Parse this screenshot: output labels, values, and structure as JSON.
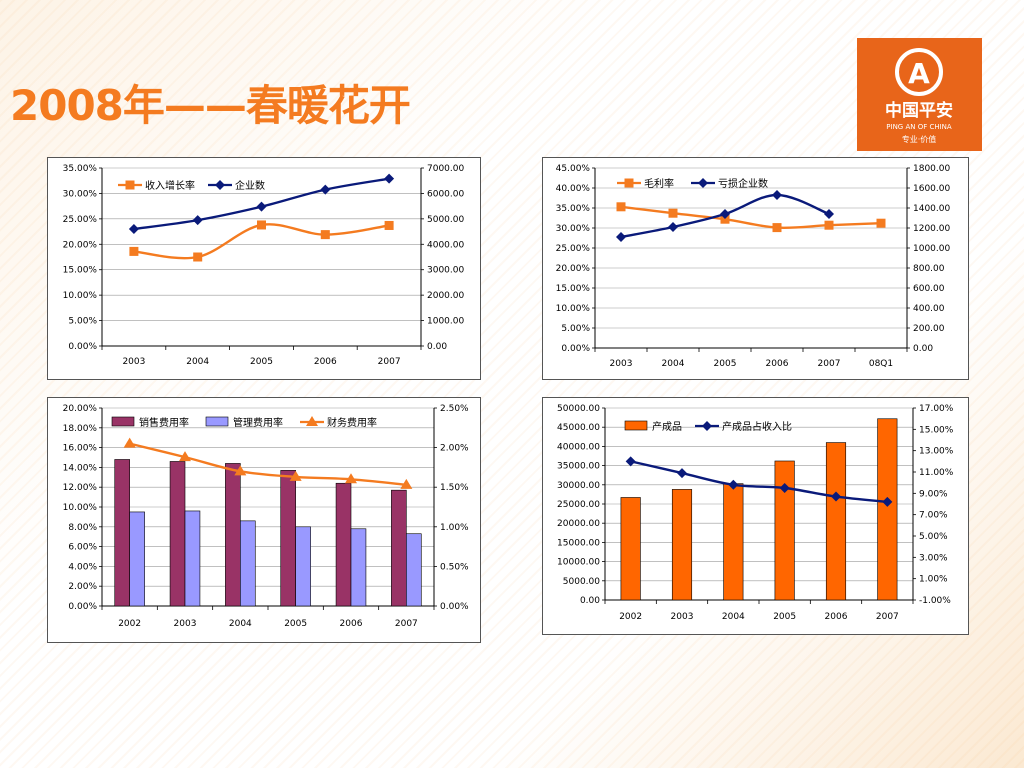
{
  "slide": {
    "title": "2008年——春暖花开"
  },
  "logo": {
    "name_cn": "中国平安",
    "name_en": "PING AN OF CHINA",
    "slogan": "专业·价值",
    "color": "#e8651a"
  },
  "chart_data": [
    {
      "type": "line",
      "categories": [
        "2003",
        "2004",
        "2005",
        "2006",
        "2007"
      ],
      "y_left": {
        "ticks": [
          "0.00%",
          "5.00%",
          "10.00%",
          "15.00%",
          "20.00%",
          "25.00%",
          "30.00%",
          "35.00%"
        ],
        "ylim": [
          0,
          35
        ]
      },
      "y_right": {
        "ticks": [
          "0.00",
          "1000.00",
          "2000.00",
          "3000.00",
          "4000.00",
          "5000.00",
          "6000.00",
          "7000.00"
        ],
        "ylim": [
          0,
          7000
        ]
      },
      "grid": true,
      "legend": "top-left",
      "series": [
        {
          "name": "收入增长率",
          "axis": "left",
          "marker": "square",
          "color": "#f47b20",
          "values": [
            18.6,
            17.5,
            23.8,
            21.9,
            23.7
          ]
        },
        {
          "name": "企业数",
          "axis": "right",
          "marker": "diamond",
          "color": "#0a1a7a",
          "values": [
            4600,
            4950,
            5480,
            6150,
            6580
          ]
        }
      ]
    },
    {
      "type": "line",
      "categories": [
        "2003",
        "2004",
        "2005",
        "2006",
        "2007",
        "08Q1"
      ],
      "y_left": {
        "ticks": [
          "0.00%",
          "5.00%",
          "10.00%",
          "15.00%",
          "20.00%",
          "25.00%",
          "30.00%",
          "35.00%",
          "40.00%",
          "45.00%"
        ],
        "ylim": [
          0,
          45
        ]
      },
      "y_right": {
        "ticks": [
          "0.00",
          "200.00",
          "400.00",
          "600.00",
          "800.00",
          "1000.00",
          "1200.00",
          "1400.00",
          "1600.00",
          "1800.00"
        ],
        "ylim": [
          0,
          1800
        ]
      },
      "grid": true,
      "legend": "top-left",
      "series": [
        {
          "name": "毛利率",
          "axis": "left",
          "marker": "square",
          "color": "#f47b20",
          "values": [
            35.3,
            33.7,
            32.2,
            30.1,
            30.7,
            31.2
          ]
        },
        {
          "name": "亏损企业数",
          "axis": "right",
          "marker": "diamond",
          "color": "#0a1a7a",
          "values": [
            1110,
            1210,
            1340,
            1530,
            1340,
            null
          ]
        }
      ]
    },
    {
      "type": "bar",
      "categories": [
        "2002",
        "2003",
        "2004",
        "2005",
        "2006",
        "2007"
      ],
      "y_left": {
        "ticks": [
          "0.00%",
          "2.00%",
          "4.00%",
          "6.00%",
          "8.00%",
          "10.00%",
          "12.00%",
          "14.00%",
          "16.00%",
          "18.00%",
          "20.00%"
        ],
        "ylim": [
          0,
          20
        ]
      },
      "y_right": {
        "ticks": [
          "0.00%",
          "0.50%",
          "1.00%",
          "1.50%",
          "2.00%",
          "2.50%"
        ],
        "ylim": [
          0,
          2.5
        ]
      },
      "grid": true,
      "legend": "top",
      "series": [
        {
          "name": "销售费用率",
          "axis": "left",
          "kind": "bar",
          "color": "#993366",
          "values": [
            14.8,
            14.6,
            14.4,
            13.7,
            12.4,
            11.7
          ]
        },
        {
          "name": "管理费用率",
          "axis": "left",
          "kind": "bar",
          "color": "#9999ff",
          "values": [
            9.5,
            9.6,
            8.6,
            8.0,
            7.8,
            7.3
          ]
        },
        {
          "name": "财务费用率",
          "axis": "right",
          "kind": "line",
          "marker": "triangle",
          "color": "#f47b20",
          "values": [
            2.05,
            1.88,
            1.7,
            1.63,
            1.6,
            1.53
          ]
        }
      ]
    },
    {
      "type": "bar",
      "categories": [
        "2002",
        "2003",
        "2004",
        "2005",
        "2006",
        "2007"
      ],
      "y_left": {
        "ticks": [
          "0.00",
          "5000.00",
          "10000.00",
          "15000.00",
          "20000.00",
          "25000.00",
          "30000.00",
          "35000.00",
          "40000.00",
          "45000.00",
          "50000.00"
        ],
        "ylim": [
          0,
          50000
        ]
      },
      "y_right": {
        "ticks": [
          "-1.00%",
          "1.00%",
          "3.00%",
          "5.00%",
          "7.00%",
          "9.00%",
          "11.00%",
          "13.00%",
          "15.00%",
          "17.00%"
        ],
        "ylim": [
          -1,
          17
        ]
      },
      "grid": true,
      "legend": "top-left",
      "series": [
        {
          "name": "产成品",
          "axis": "left",
          "kind": "bar",
          "color": "#ff6600",
          "values": [
            26700,
            28800,
            30300,
            36200,
            41000,
            47200
          ]
        },
        {
          "name": "产成品占收入比",
          "axis": "right",
          "kind": "line",
          "marker": "diamond",
          "color": "#0a1a7a",
          "values": [
            12.0,
            10.9,
            9.8,
            9.5,
            8.7,
            8.2
          ]
        }
      ]
    }
  ]
}
